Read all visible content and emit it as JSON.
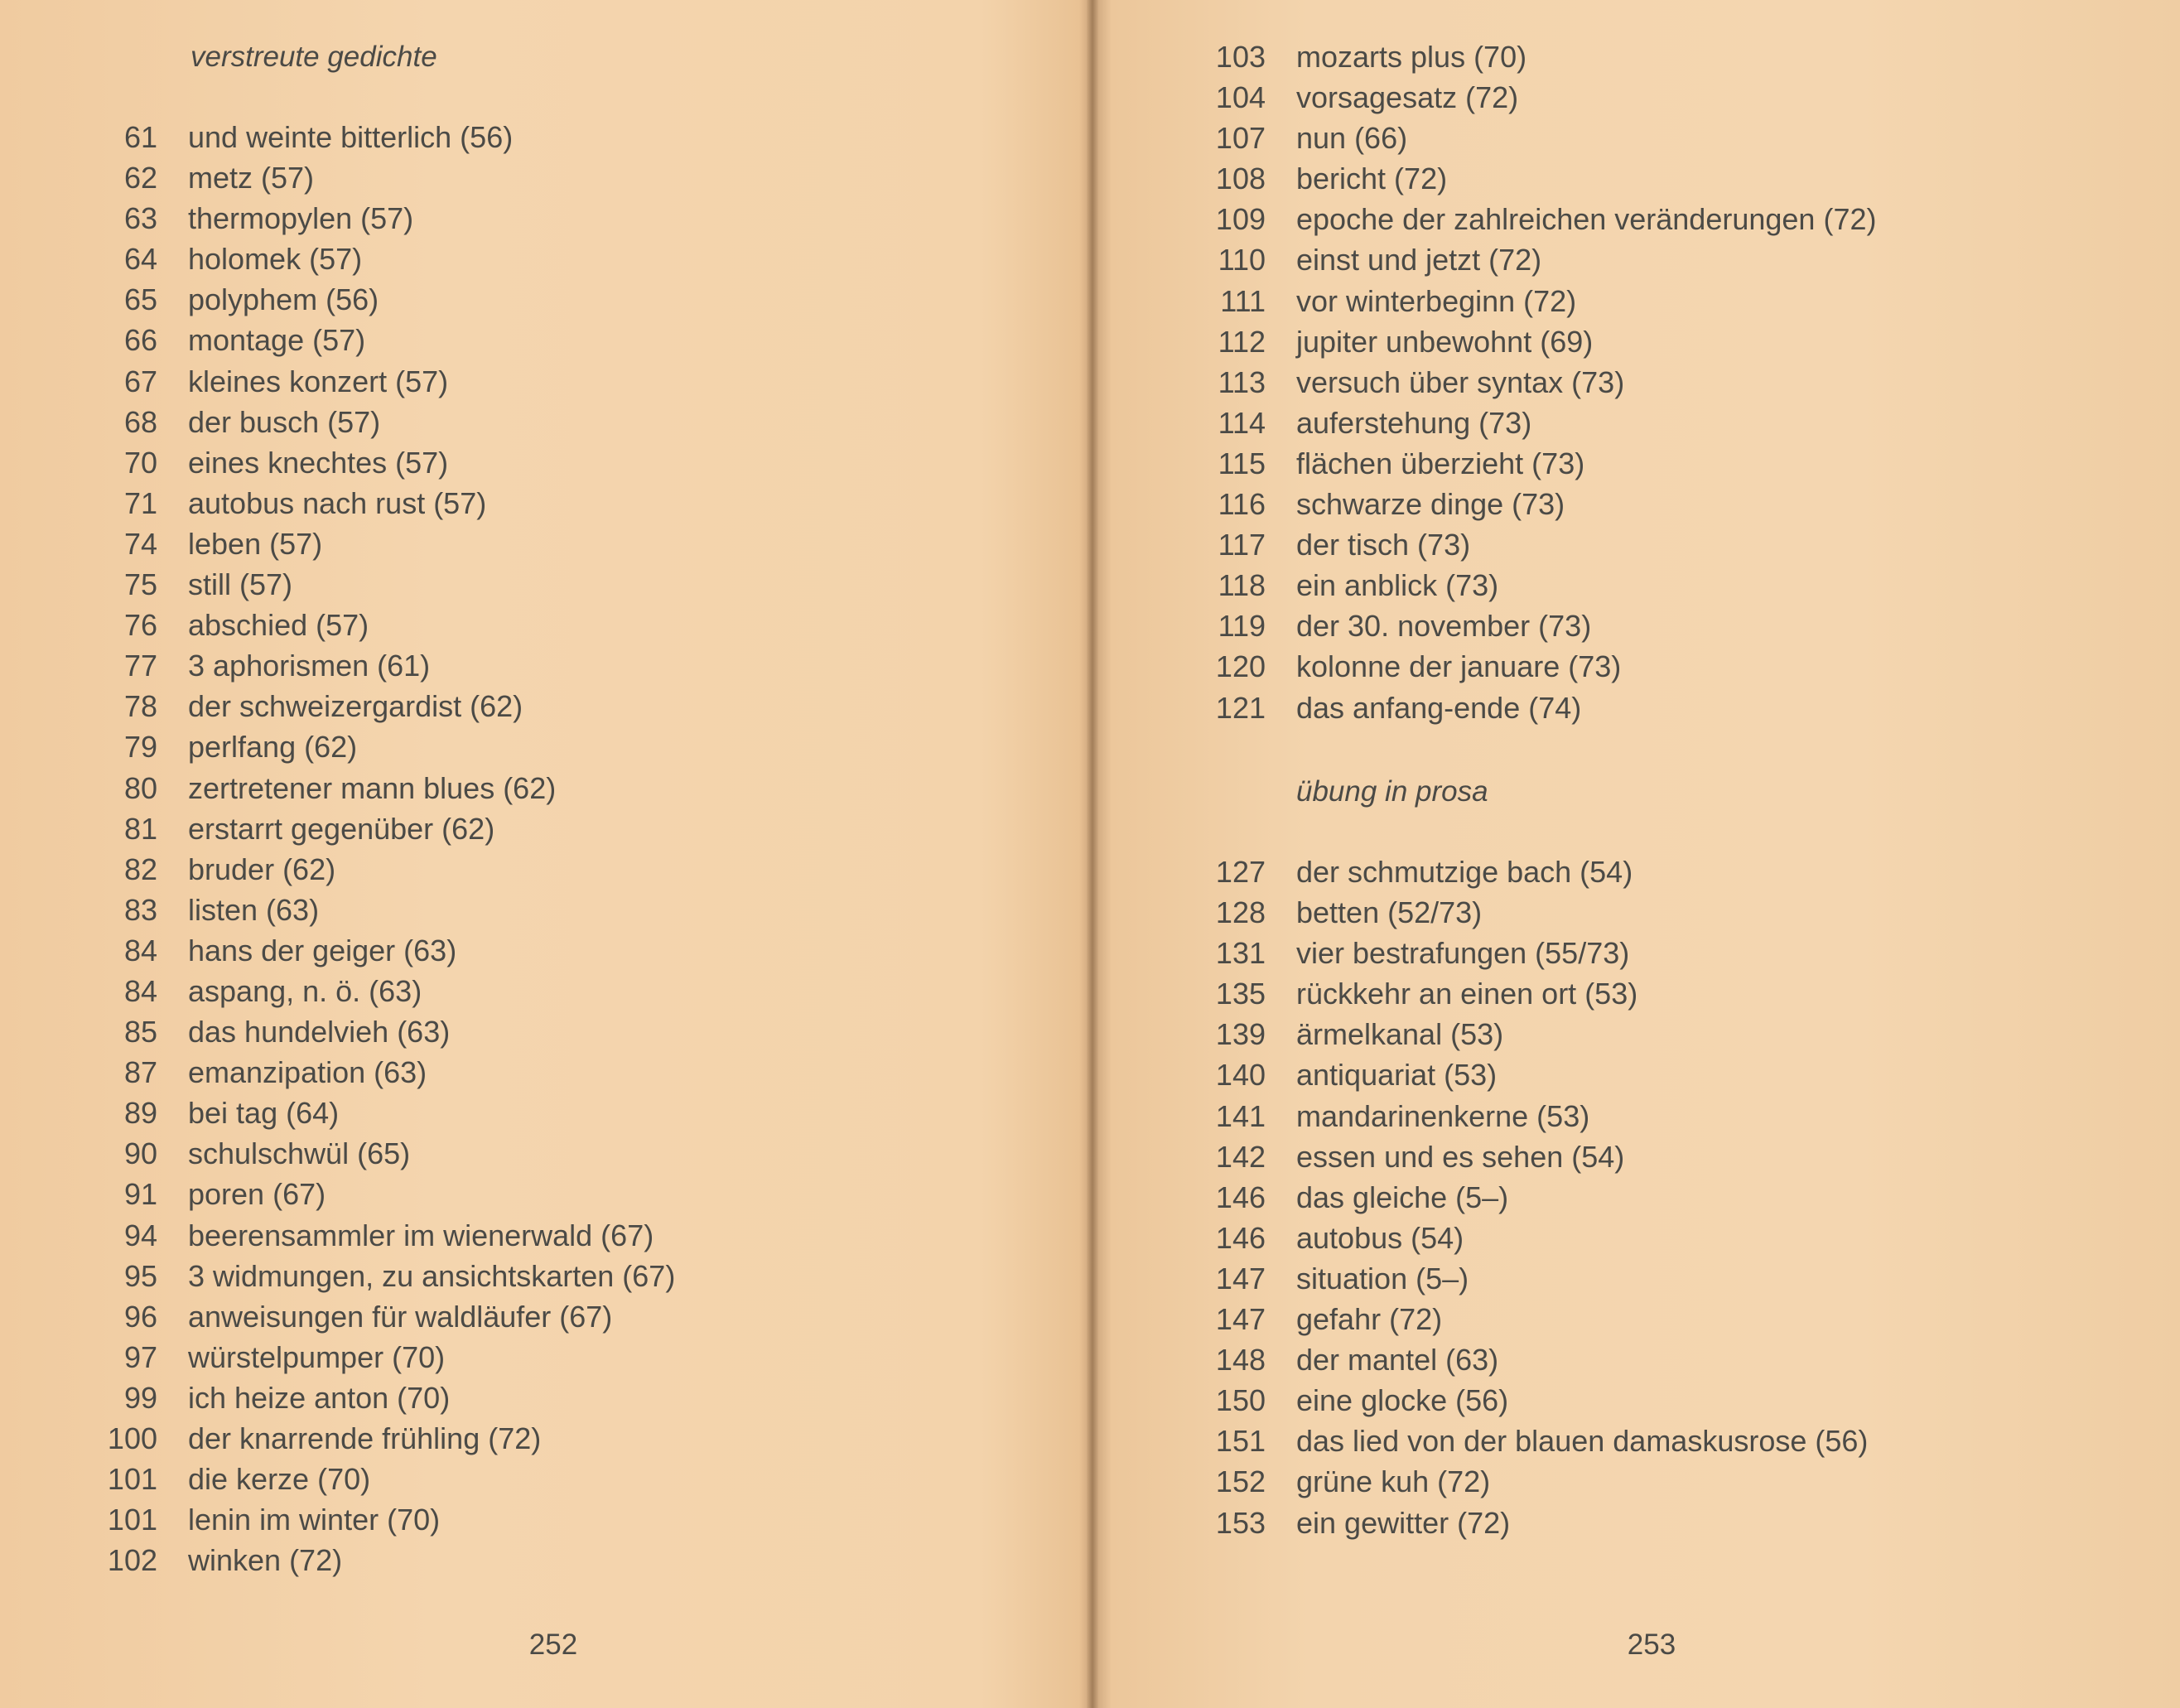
{
  "left_page": {
    "section_title": "verstreute gedichte",
    "entries": [
      {
        "num": "61",
        "title": "und weinte bitterlich (56)"
      },
      {
        "num": "62",
        "title": "metz (57)"
      },
      {
        "num": "63",
        "title": "thermopylen (57)"
      },
      {
        "num": "64",
        "title": "holomek (57)"
      },
      {
        "num": "65",
        "title": "polyphem (56)"
      },
      {
        "num": "66",
        "title": "montage (57)"
      },
      {
        "num": "67",
        "title": "kleines konzert (57)"
      },
      {
        "num": "68",
        "title": "der busch (57)"
      },
      {
        "num": "70",
        "title": "eines knechtes (57)"
      },
      {
        "num": "71",
        "title": "autobus nach rust (57)"
      },
      {
        "num": "74",
        "title": "leben (57)"
      },
      {
        "num": "75",
        "title": "still (57)"
      },
      {
        "num": "76",
        "title": "abschied (57)"
      },
      {
        "num": "77",
        "title": "3 aphorismen (61)"
      },
      {
        "num": "78",
        "title": "der schweizergardist (62)"
      },
      {
        "num": "79",
        "title": "perlfang (62)"
      },
      {
        "num": "80",
        "title": "zertretener mann blues (62)"
      },
      {
        "num": "81",
        "title": "erstarrt gegenüber (62)"
      },
      {
        "num": "82",
        "title": "bruder (62)"
      },
      {
        "num": "83",
        "title": "listen (63)"
      },
      {
        "num": "84",
        "title": "hans der geiger (63)"
      },
      {
        "num": "84",
        "title": "aspang, n. ö. (63)"
      },
      {
        "num": "85",
        "title": "das hundelvieh (63)"
      },
      {
        "num": "87",
        "title": "emanzipation (63)"
      },
      {
        "num": "89",
        "title": "bei tag (64)"
      },
      {
        "num": "90",
        "title": "schulschwül (65)"
      },
      {
        "num": "91",
        "title": "poren (67)"
      },
      {
        "num": "94",
        "title": "beerensammler im wienerwald (67)"
      },
      {
        "num": "95",
        "title": "3 widmungen, zu ansichtskarten (67)"
      },
      {
        "num": "96",
        "title": "anweisungen für waldläufer (67)"
      },
      {
        "num": "97",
        "title": "würstelpumper (70)"
      },
      {
        "num": "99",
        "title": "ich heize anton (70)"
      },
      {
        "num": "100",
        "title": "der knarrende frühling (72)"
      },
      {
        "num": "101",
        "title": "die kerze (70)"
      },
      {
        "num": "101",
        "title": "lenin im winter (70)"
      },
      {
        "num": "102",
        "title": "winken (72)"
      }
    ],
    "page_number": "252"
  },
  "right_page": {
    "entries_a": [
      {
        "num": "103",
        "title": "mozarts plus (70)"
      },
      {
        "num": "104",
        "title": "vorsagesatz (72)"
      },
      {
        "num": "107",
        "title": "nun (66)"
      },
      {
        "num": "108",
        "title": "bericht (72)"
      },
      {
        "num": "109",
        "title": "epoche der zahlreichen veränderungen (72)"
      },
      {
        "num": "110",
        "title": "einst und jetzt (72)"
      },
      {
        "num": "111",
        "title": "vor winterbeginn (72)"
      },
      {
        "num": "112",
        "title": "jupiter unbewohnt (69)"
      },
      {
        "num": "113",
        "title": "versuch über syntax (73)"
      },
      {
        "num": "114",
        "title": "auferstehung (73)"
      },
      {
        "num": "115",
        "title": "flächen überzieht (73)"
      },
      {
        "num": "116",
        "title": "schwarze dinge (73)"
      },
      {
        "num": "117",
        "title": "der tisch (73)"
      },
      {
        "num": "118",
        "title": "ein anblick (73)"
      },
      {
        "num": "119",
        "title": "der 30. november (73)"
      },
      {
        "num": "120",
        "title": "kolonne der januare (73)"
      },
      {
        "num": "121",
        "title": "das anfang-ende (74)"
      }
    ],
    "section_title": "übung in prosa",
    "entries_b": [
      {
        "num": "127",
        "title": "der schmutzige bach (54)"
      },
      {
        "num": "128",
        "title": "betten (52/73)"
      },
      {
        "num": "131",
        "title": "vier bestrafungen (55/73)"
      },
      {
        "num": "135",
        "title": "rückkehr an einen ort (53)"
      },
      {
        "num": "139",
        "title": "ärmelkanal (53)"
      },
      {
        "num": "140",
        "title": "antiquariat (53)"
      },
      {
        "num": "141",
        "title": "mandarinenkerne (53)"
      },
      {
        "num": "142",
        "title": "essen und es sehen (54)"
      },
      {
        "num": "146",
        "title": "das gleiche (5–)"
      },
      {
        "num": "146",
        "title": "autobus (54)"
      },
      {
        "num": "147",
        "title": "situation (5–)"
      },
      {
        "num": "147",
        "title": "gefahr (72)"
      },
      {
        "num": "148",
        "title": "der mantel (63)"
      },
      {
        "num": "150",
        "title": "eine glocke (56)"
      },
      {
        "num": "151",
        "title": "das lied von der blauen damaskusrose (56)"
      },
      {
        "num": "152",
        "title": "grüne kuh (72)"
      },
      {
        "num": "153",
        "title": "ein gewitter (72)"
      }
    ],
    "page_number": "253"
  }
}
